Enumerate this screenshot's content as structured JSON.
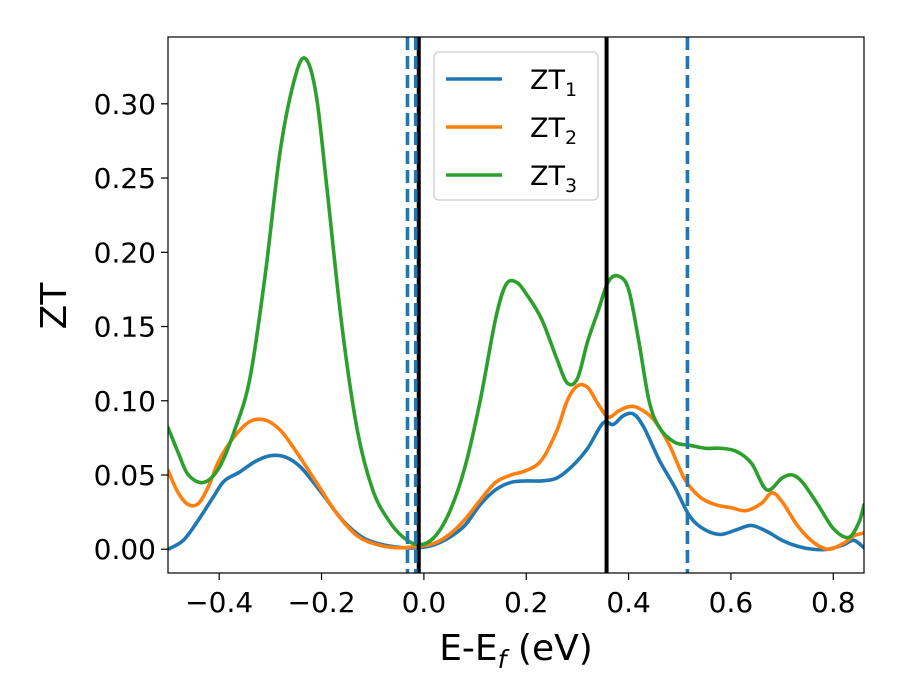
{
  "chart_data": {
    "type": "line",
    "title": "",
    "xlabel": {
      "base": "E-E",
      "sub": "f",
      "unit": " (eV)"
    },
    "ylabel": "ZT",
    "xlim": [
      -0.5,
      0.86
    ],
    "ylim": [
      -0.016,
      0.345
    ],
    "xticks": [
      {
        "value": -0.4,
        "label": "−0.4"
      },
      {
        "value": -0.2,
        "label": "−0.2"
      },
      {
        "value": 0.0,
        "label": "0.0"
      },
      {
        "value": 0.2,
        "label": "0.2"
      },
      {
        "value": 0.4,
        "label": "0.4"
      },
      {
        "value": 0.6,
        "label": "0.6"
      },
      {
        "value": 0.8,
        "label": "0.8"
      }
    ],
    "yticks": [
      {
        "value": 0.0,
        "label": "0.00"
      },
      {
        "value": 0.05,
        "label": "0.05"
      },
      {
        "value": 0.1,
        "label": "0.10"
      },
      {
        "value": 0.15,
        "label": "0.15"
      },
      {
        "value": 0.2,
        "label": "0.20"
      },
      {
        "value": 0.25,
        "label": "0.25"
      },
      {
        "value": 0.3,
        "label": "0.30"
      }
    ],
    "grid": false,
    "legend_position": "top-center",
    "series": [
      {
        "name": "ZT",
        "sub": "1",
        "color": "#1f77b4",
        "x": [
          -0.5,
          -0.47,
          -0.44,
          -0.41,
          -0.39,
          -0.36,
          -0.33,
          -0.3,
          -0.27,
          -0.24,
          -0.2,
          -0.16,
          -0.12,
          -0.08,
          -0.04,
          -0.01,
          0.02,
          0.05,
          0.08,
          0.11,
          0.14,
          0.17,
          0.2,
          0.23,
          0.26,
          0.29,
          0.32,
          0.35,
          0.37,
          0.39,
          0.41,
          0.43,
          0.46,
          0.49,
          0.52,
          0.55,
          0.58,
          0.61,
          0.64,
          0.67,
          0.7,
          0.73,
          0.76,
          0.79,
          0.82,
          0.84,
          0.86
        ],
        "y": [
          0.0,
          0.006,
          0.02,
          0.036,
          0.046,
          0.052,
          0.059,
          0.063,
          0.062,
          0.055,
          0.038,
          0.02,
          0.008,
          0.003,
          0.001,
          0.001,
          0.003,
          0.008,
          0.016,
          0.03,
          0.04,
          0.045,
          0.046,
          0.046,
          0.048,
          0.056,
          0.068,
          0.085,
          0.084,
          0.09,
          0.091,
          0.082,
          0.06,
          0.042,
          0.022,
          0.013,
          0.01,
          0.013,
          0.016,
          0.012,
          0.006,
          0.002,
          0.0,
          0.0,
          0.003,
          0.006,
          0.001
        ]
      },
      {
        "name": "ZT",
        "sub": "2",
        "color": "#ff7f0e",
        "x": [
          -0.5,
          -0.48,
          -0.46,
          -0.44,
          -0.42,
          -0.4,
          -0.37,
          -0.34,
          -0.31,
          -0.28,
          -0.25,
          -0.21,
          -0.17,
          -0.13,
          -0.09,
          -0.05,
          -0.01,
          0.02,
          0.05,
          0.08,
          0.11,
          0.14,
          0.17,
          0.2,
          0.23,
          0.26,
          0.28,
          0.3,
          0.32,
          0.34,
          0.36,
          0.38,
          0.4,
          0.42,
          0.45,
          0.48,
          0.51,
          0.54,
          0.57,
          0.6,
          0.63,
          0.66,
          0.68,
          0.7,
          0.73,
          0.76,
          0.79,
          0.82,
          0.84,
          0.86
        ],
        "y": [
          0.053,
          0.038,
          0.03,
          0.031,
          0.043,
          0.06,
          0.076,
          0.086,
          0.087,
          0.08,
          0.066,
          0.045,
          0.024,
          0.009,
          0.003,
          0.001,
          0.002,
          0.004,
          0.01,
          0.02,
          0.033,
          0.045,
          0.05,
          0.053,
          0.06,
          0.08,
          0.1,
          0.11,
          0.109,
          0.098,
          0.089,
          0.093,
          0.096,
          0.095,
          0.087,
          0.07,
          0.047,
          0.035,
          0.03,
          0.028,
          0.026,
          0.031,
          0.038,
          0.032,
          0.016,
          0.005,
          0.0,
          0.004,
          0.009,
          0.011
        ]
      },
      {
        "name": "ZT",
        "sub": "3",
        "color": "#2ca02c",
        "x": [
          -0.5,
          -0.48,
          -0.46,
          -0.43,
          -0.4,
          -0.37,
          -0.34,
          -0.31,
          -0.28,
          -0.25,
          -0.23,
          -0.21,
          -0.19,
          -0.16,
          -0.13,
          -0.1,
          -0.07,
          -0.04,
          -0.01,
          0.02,
          0.05,
          0.08,
          0.11,
          0.14,
          0.16,
          0.18,
          0.2,
          0.23,
          0.26,
          0.28,
          0.3,
          0.32,
          0.34,
          0.36,
          0.38,
          0.4,
          0.42,
          0.44,
          0.46,
          0.49,
          0.52,
          0.55,
          0.58,
          0.61,
          0.64,
          0.67,
          0.7,
          0.72,
          0.74,
          0.77,
          0.8,
          0.83,
          0.85,
          0.86
        ],
        "y": [
          0.082,
          0.065,
          0.05,
          0.045,
          0.055,
          0.08,
          0.115,
          0.185,
          0.27,
          0.32,
          0.33,
          0.305,
          0.245,
          0.15,
          0.08,
          0.04,
          0.02,
          0.008,
          0.003,
          0.008,
          0.025,
          0.055,
          0.1,
          0.155,
          0.178,
          0.18,
          0.172,
          0.155,
          0.128,
          0.112,
          0.115,
          0.14,
          0.16,
          0.18,
          0.184,
          0.175,
          0.14,
          0.1,
          0.082,
          0.072,
          0.07,
          0.068,
          0.068,
          0.066,
          0.058,
          0.04,
          0.048,
          0.05,
          0.045,
          0.03,
          0.014,
          0.008,
          0.018,
          0.03
        ]
      }
    ],
    "vlines": [
      {
        "x": -0.01,
        "style": "solid",
        "color": "#000000"
      },
      {
        "x": 0.357,
        "style": "solid",
        "color": "#000000"
      },
      {
        "x": -0.032,
        "style": "dashed",
        "color": "#1f77b4"
      },
      {
        "x": -0.016,
        "style": "dashed",
        "color": "#1f77b4"
      },
      {
        "x": 0.515,
        "style": "dashed",
        "color": "#1f77b4"
      }
    ]
  }
}
